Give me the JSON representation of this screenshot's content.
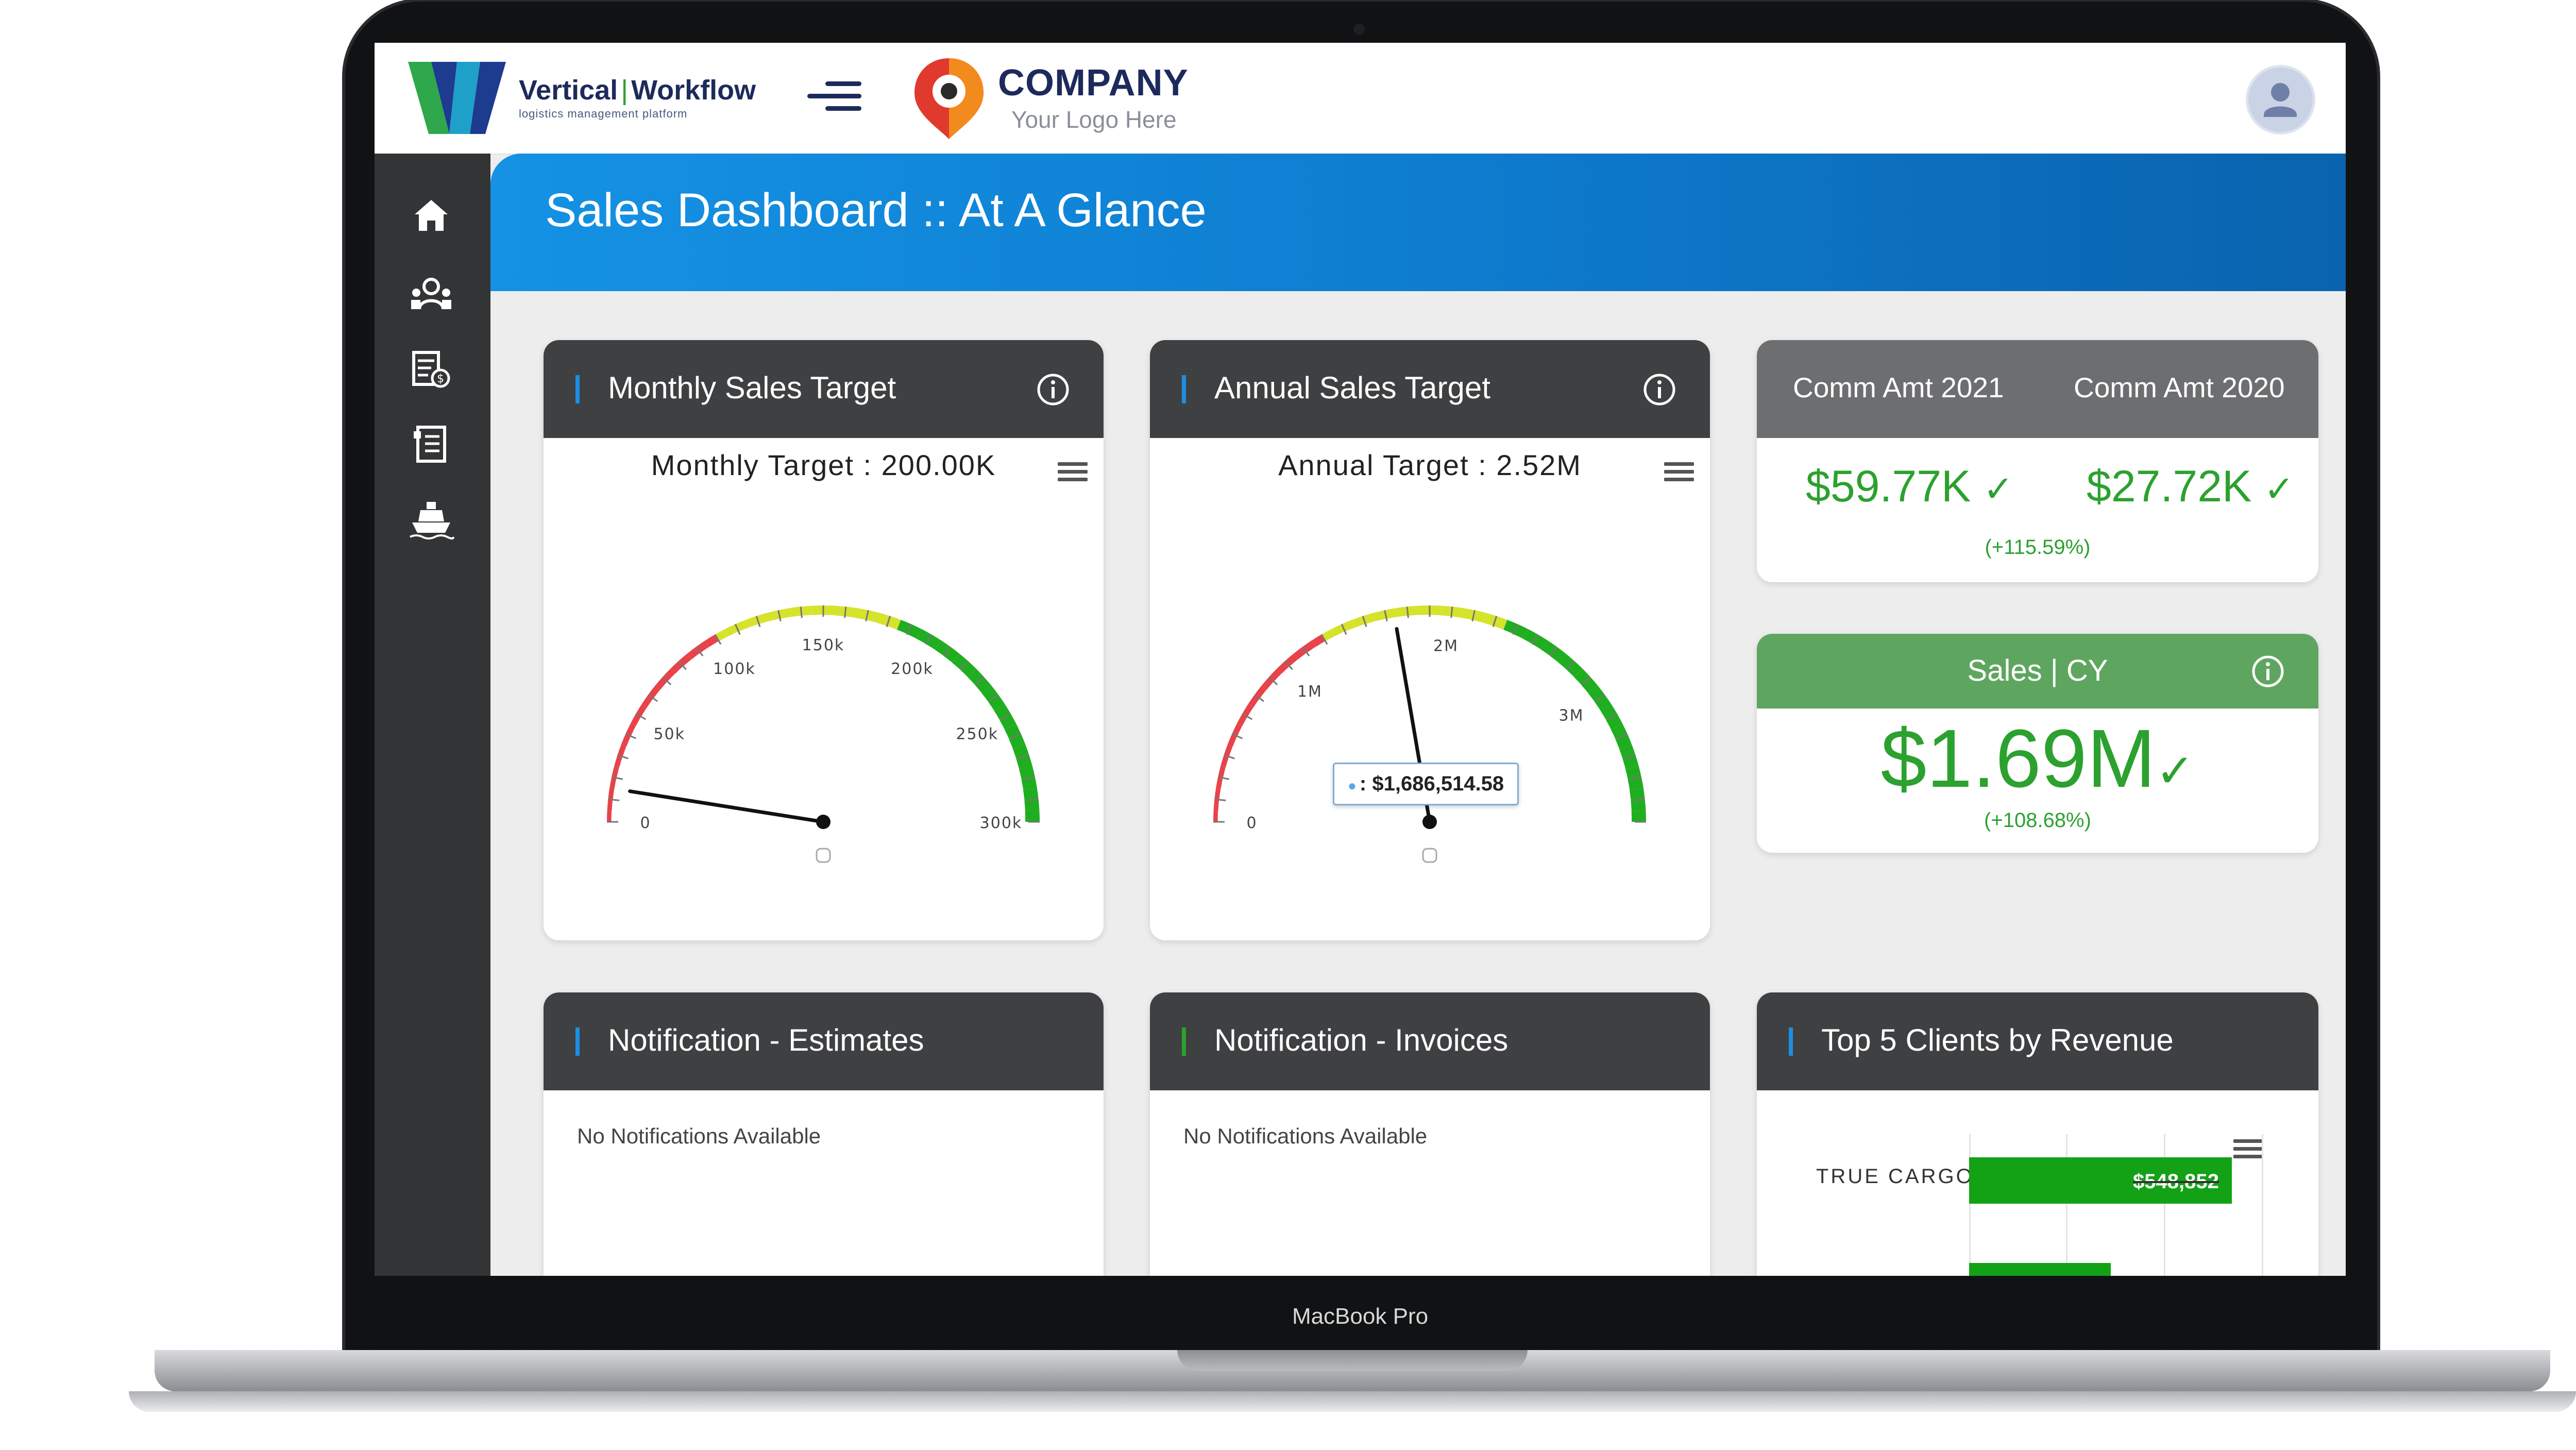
{
  "device_label": "MacBook Pro",
  "header": {
    "brand_name_left": "Vertical",
    "brand_name_right": "Workflow",
    "brand_tagline": "logistics management platform",
    "company_name": "COMPANY",
    "company_sub": "Your Logo Here"
  },
  "sidebar": {
    "items": [
      {
        "icon": "home-icon"
      },
      {
        "icon": "customers-icon"
      },
      {
        "icon": "billing-icon"
      },
      {
        "icon": "documents-icon"
      },
      {
        "icon": "shipping-icon"
      }
    ]
  },
  "banner": {
    "title": "Sales Dashboard :: At A Glance"
  },
  "monthly": {
    "title": "Monthly Sales Target",
    "label": "Monthly Target : 200.00K",
    "ticks": [
      "0",
      "50k",
      "100k",
      "150k",
      "200k",
      "250k",
      "300k"
    ],
    "max": 300000,
    "value": 15000
  },
  "annual": {
    "title": "Annual Sales Target",
    "label": "Annual Target : 2.52M",
    "ticks": [
      "0",
      "1M",
      "2M",
      "3M"
    ],
    "max": 3780000,
    "value": 1686514.58,
    "tooltip": ": $1,686,514.58"
  },
  "comm": {
    "col1_label": "Comm Amt 2021",
    "col2_label": "Comm Amt 2020",
    "col1_value": "$59.77K",
    "col2_value": "$27.72K",
    "change": "(+115.59%)"
  },
  "sales": {
    "title": "Sales | CY",
    "value": "$1.69M",
    "change": "(+108.68%)"
  },
  "notif_estimates": {
    "title": "Notification - Estimates",
    "text": "No Notifications Available"
  },
  "notif_invoices": {
    "title": "Notification - Invoices",
    "text": "No Notifications Available"
  },
  "top_clients": {
    "title": "Top 5 Clients by Revenue",
    "clients": [
      {
        "name": "TRUE CARGO",
        "value_label": "$548,852",
        "value": 548852
      }
    ]
  },
  "colors": {
    "header_dark": "#3f4042",
    "accent_blue": "#1592e4",
    "accent_green": "#2ca12f",
    "gauge_red": "#e8424a",
    "gauge_yellow": "#d5e32b",
    "gauge_green": "#1fae1f"
  }
}
